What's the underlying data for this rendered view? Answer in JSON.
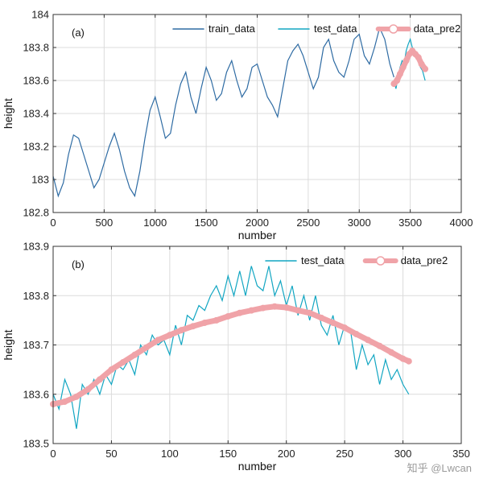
{
  "colors": {
    "train": "#2e6ba3",
    "test": "#12a6c2",
    "pred": "#f0a3a8",
    "grid": "#dcdcdc",
    "frame": "#333333"
  },
  "watermark": "知乎 @Lwcan",
  "chart_data": [
    {
      "type": "line",
      "panel_label": "(a)",
      "xlabel": "number",
      "ylabel": "height",
      "xlim": [
        0,
        4000
      ],
      "ylim": [
        182.8,
        184
      ],
      "xticks": [
        0,
        500,
        1000,
        1500,
        2000,
        2500,
        3000,
        3500,
        4000
      ],
      "yticks": [
        182.8,
        183,
        183.2,
        183.4,
        183.6,
        183.8,
        184
      ],
      "ytick_labels": [
        "182.8",
        "183",
        "183.2",
        "183.4",
        "183.6",
        "183.8",
        "184"
      ],
      "grid": true,
      "legend": "top-right",
      "series": [
        {
          "name": "train_data",
          "color_key": "train",
          "marker": "none",
          "x": [
            0,
            50,
            100,
            150,
            200,
            250,
            300,
            350,
            400,
            450,
            500,
            550,
            600,
            650,
            700,
            750,
            800,
            850,
            900,
            950,
            1000,
            1050,
            1100,
            1150,
            1200,
            1250,
            1300,
            1350,
            1400,
            1450,
            1500,
            1550,
            1600,
            1650,
            1700,
            1750,
            1800,
            1850,
            1900,
            1950,
            2000,
            2050,
            2100,
            2150,
            2200,
            2250,
            2300,
            2350,
            2400,
            2450,
            2500,
            2550,
            2600,
            2650,
            2700,
            2750,
            2800,
            2850,
            2900,
            2950,
            3000,
            3050,
            3100,
            3150,
            3200,
            3250,
            3300,
            3340
          ],
          "y": [
            183.02,
            182.9,
            182.98,
            183.15,
            183.27,
            183.25,
            183.15,
            183.05,
            182.95,
            183.0,
            183.1,
            183.2,
            183.28,
            183.18,
            183.05,
            182.95,
            182.9,
            183.05,
            183.25,
            183.42,
            183.5,
            183.38,
            183.25,
            183.28,
            183.45,
            183.58,
            183.65,
            183.5,
            183.4,
            183.55,
            183.68,
            183.6,
            183.48,
            183.52,
            183.65,
            183.72,
            183.6,
            183.5,
            183.55,
            183.68,
            183.7,
            183.6,
            183.5,
            183.45,
            183.38,
            183.55,
            183.72,
            183.78,
            183.82,
            183.75,
            183.65,
            183.55,
            183.62,
            183.8,
            183.85,
            183.72,
            183.65,
            183.62,
            183.72,
            183.85,
            183.88,
            183.75,
            183.7,
            183.8,
            183.92,
            183.85,
            183.7,
            183.62
          ]
        },
        {
          "name": "test_data",
          "color_key": "test",
          "marker": "none",
          "x": [
            3340,
            3360,
            3380,
            3400,
            3420,
            3440,
            3460,
            3480,
            3500,
            3520,
            3540,
            3560,
            3580,
            3600,
            3620,
            3646
          ],
          "y": [
            183.6,
            183.55,
            183.62,
            183.68,
            183.72,
            183.7,
            183.78,
            183.82,
            183.85,
            183.8,
            183.78,
            183.76,
            183.72,
            183.68,
            183.66,
            183.6
          ]
        },
        {
          "name": "data_pre2",
          "color_key": "pred",
          "marker": "o",
          "x": [
            3340,
            3370,
            3400,
            3430,
            3460,
            3490,
            3520,
            3550,
            3580,
            3610,
            3646
          ],
          "y": [
            183.58,
            183.6,
            183.64,
            183.68,
            183.72,
            183.76,
            183.78,
            183.76,
            183.74,
            183.7,
            183.67
          ]
        }
      ]
    },
    {
      "type": "line",
      "panel_label": "(b)",
      "xlabel": "number",
      "ylabel": "height",
      "xlim": [
        0,
        350
      ],
      "ylim": [
        183.5,
        183.9
      ],
      "xticks": [
        0,
        50,
        100,
        150,
        200,
        250,
        300,
        350
      ],
      "yticks": [
        183.5,
        183.6,
        183.7,
        183.8,
        183.9
      ],
      "ytick_labels": [
        "183.5",
        "183.6",
        "183.7",
        "183.8",
        "183.9"
      ],
      "grid": true,
      "legend": "top-right",
      "series": [
        {
          "name": "test_data",
          "color_key": "test",
          "marker": "none",
          "x": [
            0,
            5,
            10,
            15,
            20,
            25,
            30,
            35,
            40,
            45,
            50,
            55,
            60,
            65,
            70,
            75,
            80,
            85,
            90,
            95,
            100,
            105,
            110,
            115,
            120,
            125,
            130,
            135,
            140,
            145,
            150,
            155,
            160,
            165,
            170,
            175,
            180,
            185,
            190,
            195,
            200,
            205,
            210,
            215,
            220,
            225,
            230,
            235,
            240,
            245,
            250,
            255,
            260,
            265,
            270,
            275,
            280,
            285,
            290,
            295,
            300,
            305
          ],
          "y": [
            183.6,
            183.57,
            183.63,
            183.6,
            183.53,
            183.62,
            183.6,
            183.63,
            183.6,
            183.64,
            183.62,
            183.66,
            183.65,
            183.67,
            183.64,
            183.7,
            183.68,
            183.72,
            183.7,
            183.71,
            183.68,
            183.74,
            183.7,
            183.76,
            183.75,
            183.78,
            183.77,
            183.8,
            183.82,
            183.79,
            183.84,
            183.8,
            183.85,
            183.8,
            183.86,
            183.82,
            183.81,
            183.86,
            183.8,
            183.83,
            183.78,
            183.82,
            183.76,
            183.8,
            183.75,
            183.8,
            183.74,
            183.72,
            183.76,
            183.7,
            183.74,
            183.73,
            183.65,
            183.7,
            183.66,
            183.68,
            183.62,
            183.67,
            183.63,
            183.65,
            183.62,
            183.6
          ]
        },
        {
          "name": "data_pre2",
          "color_key": "pred",
          "marker": "o",
          "x": [
            0,
            10,
            20,
            30,
            40,
            50,
            60,
            70,
            80,
            90,
            100,
            110,
            120,
            130,
            140,
            150,
            160,
            170,
            180,
            190,
            200,
            210,
            220,
            230,
            240,
            250,
            260,
            270,
            280,
            290,
            300,
            305
          ],
          "y": [
            183.58,
            183.585,
            183.595,
            183.61,
            183.63,
            183.65,
            183.665,
            183.68,
            183.695,
            183.71,
            183.72,
            183.73,
            183.738,
            183.745,
            183.75,
            183.758,
            183.765,
            183.77,
            183.775,
            183.778,
            183.776,
            183.77,
            183.765,
            183.755,
            183.745,
            183.735,
            183.722,
            183.71,
            183.698,
            183.685,
            183.672,
            183.667
          ]
        }
      ]
    }
  ]
}
